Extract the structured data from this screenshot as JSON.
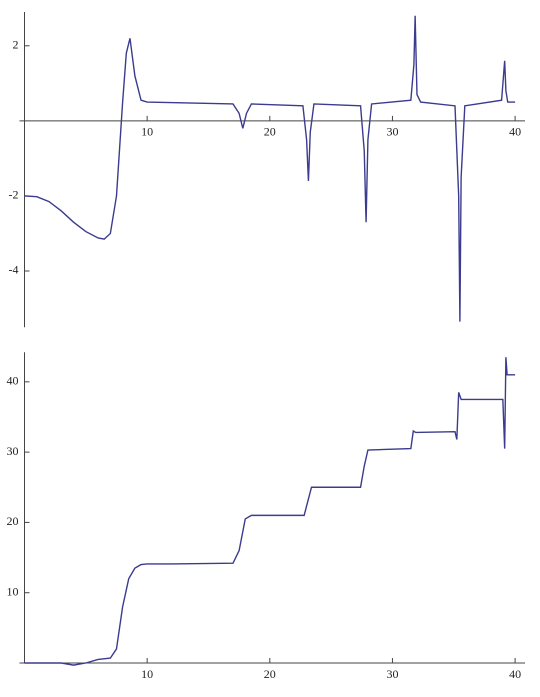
{
  "chart_data": [
    {
      "type": "line",
      "x": [
        0,
        1,
        2,
        3,
        4,
        5,
        6,
        6.5,
        7,
        7.5,
        8,
        8.3,
        8.6,
        9,
        9.5,
        10,
        17,
        17.5,
        17.8,
        18.1,
        18.5,
        22.7,
        23,
        23.15,
        23.3,
        23.6,
        27.4,
        27.7,
        27.85,
        28,
        28.3,
        31.5,
        31.75,
        31.85,
        32,
        32.3,
        35.1,
        35.4,
        35.5,
        35.6,
        35.9,
        38.9,
        39.15,
        39.25,
        39.4,
        40
      ],
      "series": [
        {
          "color": "#3b3b8f",
          "values": [
            -2,
            -2.02,
            -2.15,
            -2.4,
            -2.7,
            -2.95,
            -3.12,
            -3.15,
            -3.0,
            -2.0,
            0.5,
            1.8,
            2.2,
            1.2,
            0.55,
            0.5,
            0.45,
            0.2,
            -0.2,
            0.2,
            0.45,
            0.4,
            -0.5,
            -1.6,
            -0.3,
            0.45,
            0.4,
            -0.8,
            -2.7,
            -0.5,
            0.45,
            0.55,
            1.5,
            2.8,
            0.7,
            0.5,
            0.4,
            -2,
            -5.35,
            -1.5,
            0.4,
            0.55,
            1.6,
            0.8,
            0.5,
            0.5
          ]
        }
      ],
      "xlim": [
        0,
        40.4
      ],
      "ylim": [
        -5.5,
        2.9
      ],
      "xticks": [
        10,
        20,
        30,
        40
      ],
      "yticks": [
        -4,
        -2,
        2
      ]
    },
    {
      "type": "line",
      "x": [
        0,
        3,
        4,
        5,
        6,
        7,
        7.5,
        8,
        8.5,
        9,
        9.5,
        10,
        12,
        17,
        17.5,
        18,
        18.5,
        22.8,
        23.1,
        23.4,
        27.4,
        27.7,
        28,
        31.5,
        31.7,
        31.9,
        35.1,
        35.25,
        35.4,
        35.6,
        39,
        39.15,
        39.25,
        39.35,
        39.5,
        40
      ],
      "series": [
        {
          "color": "#3b3b8f",
          "values": [
            0,
            0,
            -0.3,
            0,
            0.5,
            0.7,
            2,
            8,
            12,
            13.5,
            14,
            14.1,
            14.1,
            14.2,
            16,
            20.5,
            21,
            21,
            23,
            25,
            25,
            28,
            30.3,
            30.5,
            33,
            32.8,
            32.9,
            31.8,
            38.5,
            37.5,
            37.5,
            30.5,
            43.5,
            41,
            41,
            41
          ]
        }
      ],
      "xlim": [
        0,
        40.4
      ],
      "ylim": [
        0,
        44.2
      ],
      "xticks": [
        10,
        20,
        30,
        40
      ],
      "yticks": [
        10,
        20,
        30,
        40
      ]
    }
  ]
}
